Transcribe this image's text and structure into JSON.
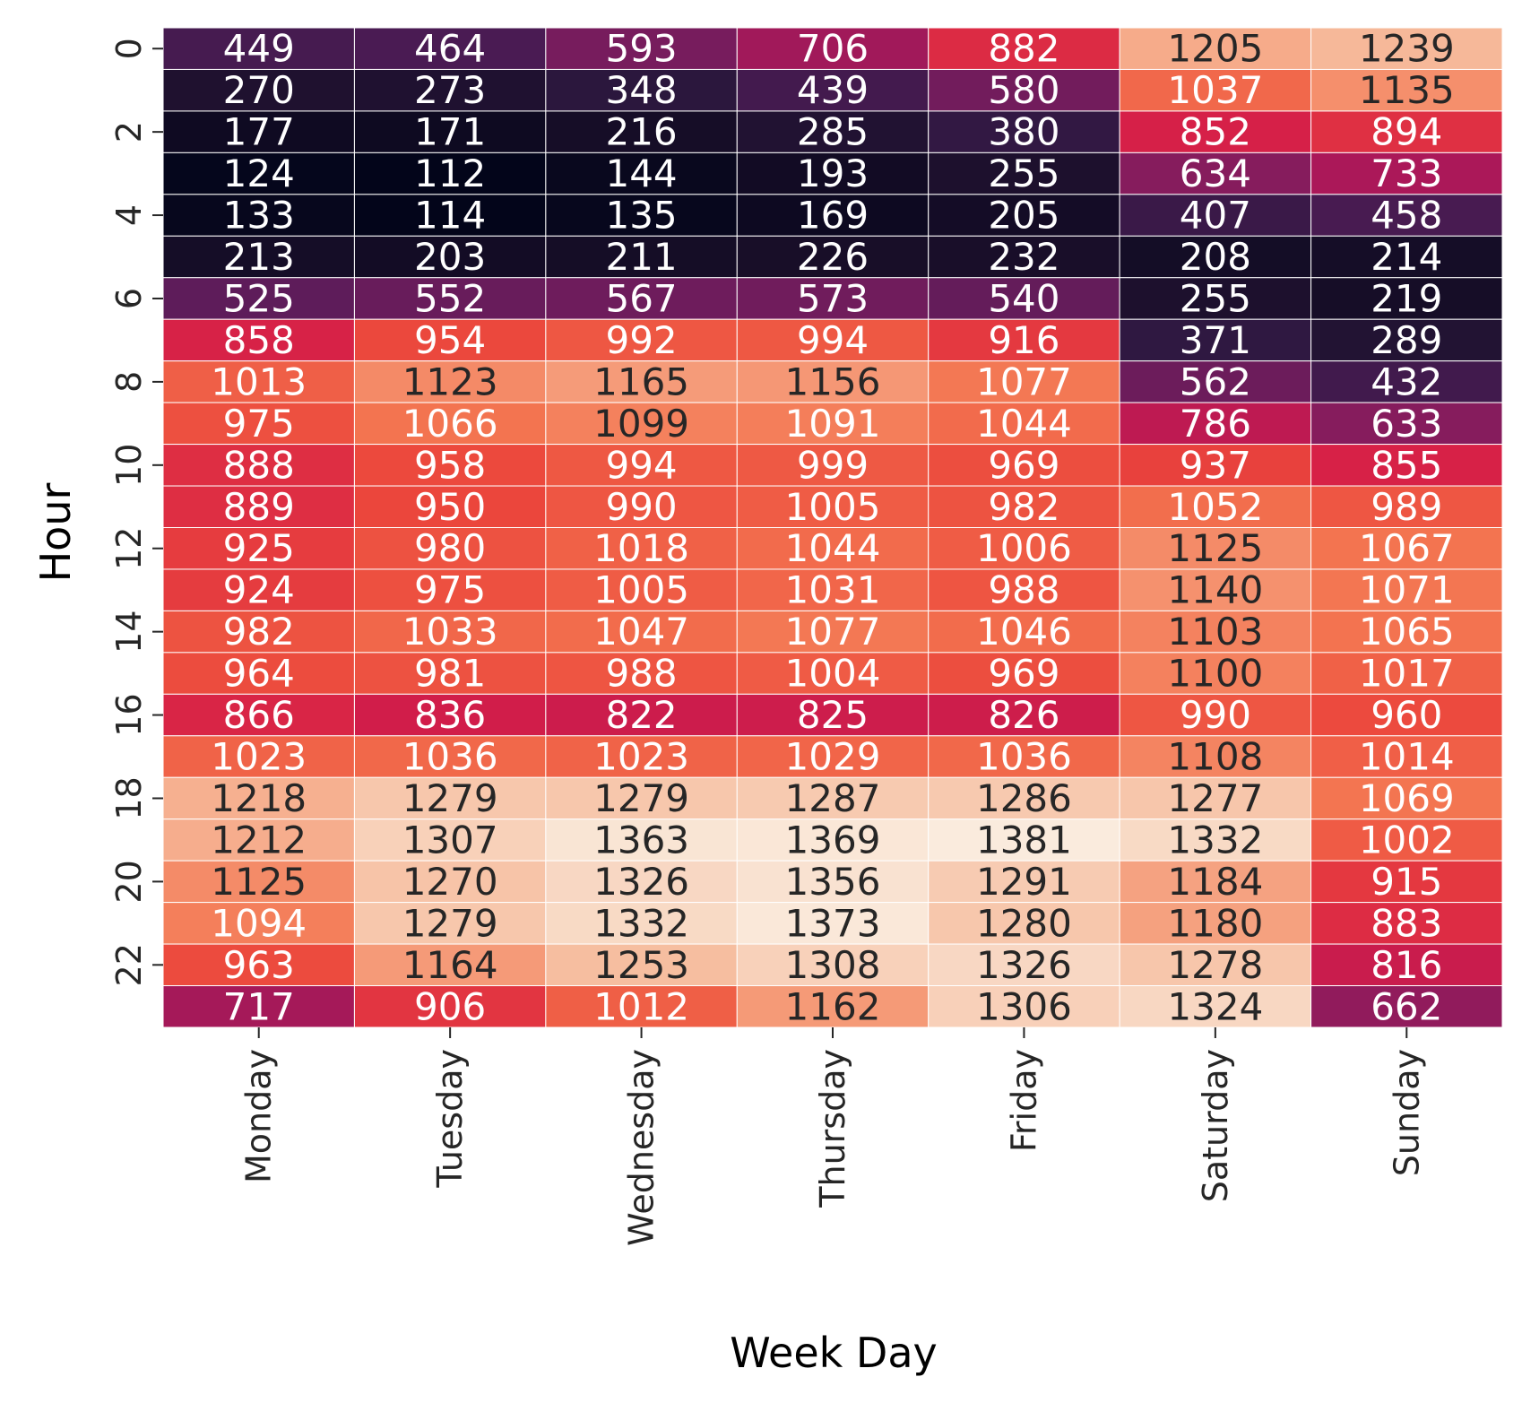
{
  "chart_data": {
    "type": "heatmap",
    "title": "",
    "xlabel": "Week Day",
    "ylabel": "Hour",
    "x_categories": [
      "Monday",
      "Tuesday",
      "Wednesday",
      "Thursday",
      "Friday",
      "Saturday",
      "Sunday"
    ],
    "y_categories": [
      0,
      1,
      2,
      3,
      4,
      5,
      6,
      7,
      8,
      9,
      10,
      11,
      12,
      13,
      14,
      15,
      16,
      17,
      18,
      19,
      20,
      21,
      22,
      23
    ],
    "y_tick_labels": [
      "0",
      "2",
      "4",
      "6",
      "8",
      "10",
      "12",
      "14",
      "16",
      "18",
      "20",
      "22"
    ],
    "values": [
      [
        449,
        464,
        593,
        706,
        882,
        1205,
        1239
      ],
      [
        270,
        273,
        348,
        439,
        580,
        1037,
        1135
      ],
      [
        177,
        171,
        216,
        285,
        380,
        852,
        894
      ],
      [
        124,
        112,
        144,
        193,
        255,
        634,
        733
      ],
      [
        133,
        114,
        135,
        169,
        205,
        407,
        458
      ],
      [
        213,
        203,
        211,
        226,
        232,
        208,
        214
      ],
      [
        525,
        552,
        567,
        573,
        540,
        255,
        219
      ],
      [
        858,
        954,
        992,
        994,
        916,
        371,
        289
      ],
      [
        1013,
        1123,
        1165,
        1156,
        1077,
        562,
        432
      ],
      [
        975,
        1066,
        1099,
        1091,
        1044,
        786,
        633
      ],
      [
        888,
        958,
        994,
        999,
        969,
        937,
        855
      ],
      [
        889,
        950,
        990,
        1005,
        982,
        1052,
        989
      ],
      [
        925,
        980,
        1018,
        1044,
        1006,
        1125,
        1067
      ],
      [
        924,
        975,
        1005,
        1031,
        988,
        1140,
        1071
      ],
      [
        982,
        1033,
        1047,
        1077,
        1046,
        1103,
        1065
      ],
      [
        964,
        981,
        988,
        1004,
        969,
        1100,
        1017
      ],
      [
        866,
        836,
        822,
        825,
        826,
        990,
        960
      ],
      [
        1023,
        1036,
        1023,
        1029,
        1036,
        1108,
        1014
      ],
      [
        1218,
        1279,
        1279,
        1287,
        1286,
        1277,
        1069
      ],
      [
        1212,
        1307,
        1363,
        1369,
        1381,
        1332,
        1002
      ],
      [
        1125,
        1270,
        1326,
        1356,
        1291,
        1184,
        915
      ],
      [
        1094,
        1279,
        1332,
        1373,
        1280,
        1180,
        883
      ],
      [
        963,
        1164,
        1253,
        1308,
        1326,
        1278,
        816
      ],
      [
        717,
        906,
        1012,
        1162,
        1306,
        1324,
        662
      ]
    ],
    "vmin": 112,
    "vmax": 1381,
    "colormap": "rocket",
    "colorbar": false,
    "annotations": true,
    "grid": false,
    "cell_border_color": "#ffffff",
    "dark_text_color": "#262626",
    "light_text_color": "#ffffff"
  }
}
